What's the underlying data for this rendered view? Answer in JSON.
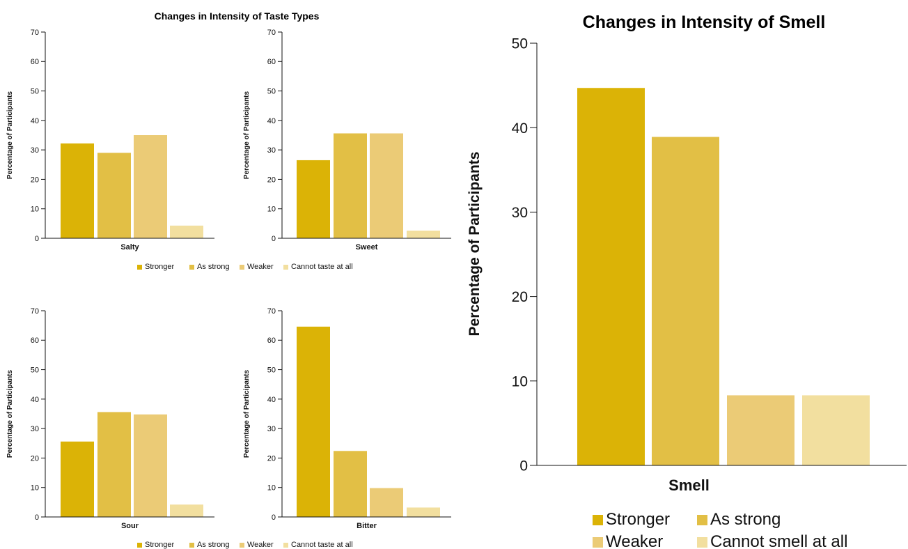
{
  "palette": {
    "stronger": "#dbb306",
    "as_strong": "#e2bf45",
    "weaker": "#ebcb76",
    "cannot": "#f2df9f",
    "axis": "#111111"
  },
  "taste_panel": {
    "title": "Changes in Intensity of Taste Types",
    "legend": [
      "Stronger",
      "As strong",
      "Weaker",
      "Cannot taste at all"
    ]
  },
  "smell_panel": {
    "title": "Changes in Intensity of Smell",
    "legend": [
      "Stronger",
      "As strong",
      "Weaker",
      "Cannot smell at all"
    ]
  },
  "chart_data": [
    {
      "type": "bar",
      "categories": [
        "Salty"
      ],
      "series": [
        {
          "name": "Stronger",
          "values": [
            32.2
          ]
        },
        {
          "name": "As strong",
          "values": [
            29.0
          ]
        },
        {
          "name": "Weaker",
          "values": [
            35.0
          ]
        },
        {
          "name": "Cannot taste at all",
          "values": [
            4.3
          ]
        }
      ],
      "xlabel": "Salty",
      "ylabel": "Percentage of Participants",
      "ylim": [
        0,
        70
      ],
      "yticks": [
        0,
        10,
        20,
        30,
        40,
        50,
        60,
        70
      ]
    },
    {
      "type": "bar",
      "categories": [
        "Sweet"
      ],
      "series": [
        {
          "name": "Stronger",
          "values": [
            26.5
          ]
        },
        {
          "name": "As strong",
          "values": [
            35.6
          ]
        },
        {
          "name": "Weaker",
          "values": [
            35.6
          ]
        },
        {
          "name": "Cannot taste at all",
          "values": [
            2.6
          ]
        }
      ],
      "xlabel": "Sweet",
      "ylabel": "Percentage of Participants",
      "ylim": [
        0,
        70
      ],
      "yticks": [
        0,
        10,
        20,
        30,
        40,
        50,
        60,
        70
      ]
    },
    {
      "type": "bar",
      "categories": [
        "Sour"
      ],
      "series": [
        {
          "name": "Stronger",
          "values": [
            25.6
          ]
        },
        {
          "name": "As strong",
          "values": [
            35.6
          ]
        },
        {
          "name": "Weaker",
          "values": [
            34.8
          ]
        },
        {
          "name": "Cannot taste at all",
          "values": [
            4.2
          ]
        }
      ],
      "xlabel": "Sour",
      "ylabel": "Percentage of Participants",
      "ylim": [
        0,
        70
      ],
      "yticks": [
        0,
        10,
        20,
        30,
        40,
        50,
        60,
        70
      ]
    },
    {
      "type": "bar",
      "categories": [
        "Bitter"
      ],
      "series": [
        {
          "name": "Stronger",
          "values": [
            64.6
          ]
        },
        {
          "name": "As strong",
          "values": [
            22.4
          ]
        },
        {
          "name": "Weaker",
          "values": [
            9.8
          ]
        },
        {
          "name": "Cannot taste at all",
          "values": [
            3.2
          ]
        }
      ],
      "xlabel": "Bitter",
      "ylabel": "Percentage of Participants",
      "ylim": [
        0,
        70
      ],
      "yticks": [
        0,
        10,
        20,
        30,
        40,
        50,
        60,
        70
      ]
    },
    {
      "type": "bar",
      "categories": [
        "Smell"
      ],
      "series": [
        {
          "name": "Stronger",
          "values": [
            44.7
          ]
        },
        {
          "name": "As strong",
          "values": [
            38.9
          ]
        },
        {
          "name": "Weaker",
          "values": [
            8.3
          ]
        },
        {
          "name": "Cannot smell at all",
          "values": [
            8.3
          ]
        }
      ],
      "xlabel": "Smell",
      "ylabel": "Percentage of Participants",
      "ylim": [
        0,
        50
      ],
      "yticks": [
        0,
        10,
        20,
        30,
        40,
        50
      ]
    }
  ]
}
